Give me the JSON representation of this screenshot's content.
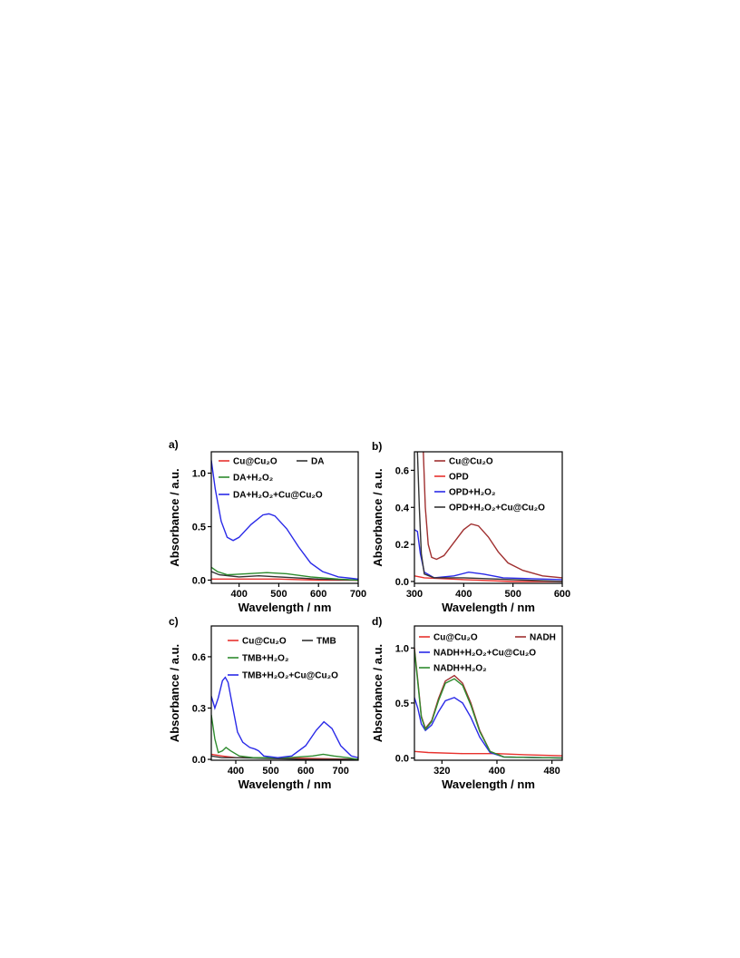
{
  "chart_data": [
    {
      "panel": "a)",
      "type": "line",
      "xlabel": "Wavelength / nm",
      "ylabel": "Absorbance / a.u.",
      "xlim": [
        330,
        700
      ],
      "ylim": [
        -0.03,
        1.2
      ],
      "xticks": [
        400,
        500,
        600,
        700
      ],
      "yticks": [
        0.0,
        0.5,
        1.0
      ],
      "ytick_labels": [
        "0.0",
        "0.5",
        "1.0"
      ],
      "legend": [
        {
          "label": "Cu@Cu₂O",
          "color": "#e8322e"
        },
        {
          "label": "DA",
          "color": "#333333"
        },
        {
          "label": "DA+H₂O₂",
          "color": "#2e8b2e"
        },
        {
          "label": "DA+H₂O₂+Cu@Cu₂O",
          "color": "#2a2ae8"
        }
      ],
      "series": [
        {
          "name": "Cu@Cu₂O",
          "color": "#e8322e",
          "points": [
            [
              330,
              0.01
            ],
            [
              400,
              0.01
            ],
            [
              500,
              0.01
            ],
            [
              600,
              0.0
            ],
            [
              700,
              0.0
            ]
          ]
        },
        {
          "name": "DA",
          "color": "#333333",
          "points": [
            [
              330,
              0.08
            ],
            [
              350,
              0.05
            ],
            [
              400,
              0.03
            ],
            [
              450,
              0.04
            ],
            [
              500,
              0.03
            ],
            [
              600,
              0.01
            ],
            [
              700,
              0.0
            ]
          ]
        },
        {
          "name": "DA+H₂O₂",
          "color": "#2e8b2e",
          "points": [
            [
              330,
              0.12
            ],
            [
              345,
              0.08
            ],
            [
              370,
              0.05
            ],
            [
              420,
              0.06
            ],
            [
              470,
              0.07
            ],
            [
              520,
              0.06
            ],
            [
              580,
              0.03
            ],
            [
              650,
              0.01
            ],
            [
              700,
              0.0
            ]
          ]
        },
        {
          "name": "DA+H₂O₂+Cu@Cu₂O",
          "color": "#2a2ae8",
          "points": [
            [
              330,
              1.12
            ],
            [
              340,
              0.85
            ],
            [
              355,
              0.55
            ],
            [
              370,
              0.4
            ],
            [
              385,
              0.37
            ],
            [
              400,
              0.4
            ],
            [
              430,
              0.52
            ],
            [
              460,
              0.61
            ],
            [
              475,
              0.62
            ],
            [
              490,
              0.6
            ],
            [
              520,
              0.48
            ],
            [
              550,
              0.31
            ],
            [
              580,
              0.16
            ],
            [
              610,
              0.08
            ],
            [
              650,
              0.03
            ],
            [
              700,
              0.01
            ]
          ]
        }
      ]
    },
    {
      "panel": "b)",
      "type": "line",
      "xlabel": "Wavelength / nm",
      "ylabel": "Absorbance / a.u.",
      "xlim": [
        300,
        600
      ],
      "ylim": [
        -0.01,
        0.7
      ],
      "xticks": [
        300,
        400,
        500,
        600
      ],
      "yticks": [
        0.0,
        0.2,
        0.4,
        0.6
      ],
      "ytick_labels": [
        "0.0",
        "0.2",
        "0.4",
        "0.6"
      ],
      "legend": [
        {
          "label": "Cu@Cu₂O",
          "color": "#a03030"
        },
        {
          "label": "OPD",
          "color": "#e8322e"
        },
        {
          "label": "OPD+H₂O₂",
          "color": "#2a2ae8"
        },
        {
          "label": "OPD+H₂O₂+Cu@Cu₂O",
          "color": "#333333"
        }
      ],
      "series": [
        {
          "name": "Cu@Cu₂O",
          "color": "#a03030",
          "points": [
            [
              318,
              0.7
            ],
            [
              322,
              0.4
            ],
            [
              328,
              0.2
            ],
            [
              335,
              0.13
            ],
            [
              345,
              0.12
            ],
            [
              360,
              0.14
            ],
            [
              380,
              0.21
            ],
            [
              400,
              0.28
            ],
            [
              415,
              0.31
            ],
            [
              430,
              0.3
            ],
            [
              450,
              0.24
            ],
            [
              470,
              0.16
            ],
            [
              490,
              0.1
            ],
            [
              520,
              0.06
            ],
            [
              560,
              0.03
            ],
            [
              600,
              0.02
            ]
          ]
        },
        {
          "name": "OPD",
          "color": "#e8322e",
          "points": [
            [
              300,
              0.03
            ],
            [
              320,
              0.02
            ],
            [
              400,
              0.01
            ],
            [
              500,
              0.0
            ],
            [
              600,
              0.0
            ]
          ]
        },
        {
          "name": "OPD+H₂O₂",
          "color": "#2a2ae8",
          "points": [
            [
              300,
              0.28
            ],
            [
              306,
              0.27
            ],
            [
              312,
              0.15
            ],
            [
              320,
              0.05
            ],
            [
              340,
              0.02
            ],
            [
              380,
              0.03
            ],
            [
              410,
              0.05
            ],
            [
              440,
              0.04
            ],
            [
              480,
              0.02
            ],
            [
              600,
              0.01
            ]
          ]
        },
        {
          "name": "OPD+H₂O₂+Cu@Cu₂O",
          "color": "#333333",
          "points": [
            [
              306,
              0.7
            ],
            [
              310,
              0.4
            ],
            [
              314,
              0.15
            ],
            [
              320,
              0.04
            ],
            [
              340,
              0.02
            ],
            [
              400,
              0.02
            ],
            [
              500,
              0.01
            ],
            [
              600,
              0.0
            ]
          ]
        }
      ]
    },
    {
      "panel": "c)",
      "type": "line",
      "xlabel": "Wavelength / nm",
      "ylabel": "Absorbance / a.u.",
      "xlim": [
        330,
        750
      ],
      "ylim": [
        -0.005,
        0.78
      ],
      "xticks": [
        400,
        500,
        600,
        700
      ],
      "yticks": [
        0.0,
        0.3,
        0.6
      ],
      "ytick_labels": [
        "0.0",
        "0.3",
        "0.6"
      ],
      "legend": [
        {
          "label": "Cu@Cu₂O",
          "color": "#e8322e"
        },
        {
          "label": "TMB",
          "color": "#333333"
        },
        {
          "label": "TMB+H₂O₂",
          "color": "#2e8b2e"
        },
        {
          "label": "TMB+H₂O₂+Cu@Cu₂O",
          "color": "#2a2ae8"
        }
      ],
      "series": [
        {
          "name": "Cu@Cu₂O",
          "color": "#e8322e",
          "points": [
            [
              330,
              0.03
            ],
            [
              360,
              0.02
            ],
            [
              400,
              0.01
            ],
            [
              500,
              0.01
            ],
            [
              750,
              0.0
            ]
          ]
        },
        {
          "name": "TMB",
          "color": "#333333",
          "points": [
            [
              330,
              0.02
            ],
            [
              360,
              0.01
            ],
            [
              400,
              0.01
            ],
            [
              600,
              0.0
            ],
            [
              750,
              0.0
            ]
          ]
        },
        {
          "name": "TMB+H₂O₂",
          "color": "#2e8b2e",
          "points": [
            [
              330,
              0.26
            ],
            [
              340,
              0.12
            ],
            [
              350,
              0.04
            ],
            [
              362,
              0.05
            ],
            [
              372,
              0.07
            ],
            [
              385,
              0.05
            ],
            [
              410,
              0.02
            ],
            [
              450,
              0.01
            ],
            [
              550,
              0.01
            ],
            [
              620,
              0.02
            ],
            [
              650,
              0.03
            ],
            [
              680,
              0.02
            ],
            [
              720,
              0.01
            ],
            [
              750,
              0.0
            ]
          ]
        },
        {
          "name": "TMB+H₂O₂+Cu@Cu₂O",
          "color": "#2a2ae8",
          "points": [
            [
              330,
              0.37
            ],
            [
              340,
              0.3
            ],
            [
              350,
              0.36
            ],
            [
              362,
              0.46
            ],
            [
              370,
              0.48
            ],
            [
              378,
              0.45
            ],
            [
              390,
              0.32
            ],
            [
              405,
              0.16
            ],
            [
              420,
              0.1
            ],
            [
              440,
              0.07
            ],
            [
              455,
              0.06
            ],
            [
              465,
              0.05
            ],
            [
              480,
              0.02
            ],
            [
              520,
              0.01
            ],
            [
              560,
              0.02
            ],
            [
              600,
              0.08
            ],
            [
              630,
              0.17
            ],
            [
              652,
              0.22
            ],
            [
              675,
              0.18
            ],
            [
              700,
              0.08
            ],
            [
              730,
              0.02
            ],
            [
              750,
              0.01
            ]
          ]
        }
      ]
    },
    {
      "panel": "d)",
      "type": "line",
      "xlabel": "Wavelength / nm",
      "ylabel": "Absorbance / a.u.",
      "xlim": [
        280,
        495
      ],
      "ylim": [
        -0.02,
        1.2
      ],
      "xticks": [
        320,
        400,
        480
      ],
      "yticks": [
        0.0,
        0.5,
        1.0
      ],
      "ytick_labels": [
        "0.0",
        "0.5",
        "1.0"
      ],
      "legend": [
        {
          "label": "Cu@Cu₂O",
          "color": "#e8322e"
        },
        {
          "label": "NADH",
          "color": "#a03030"
        },
        {
          "label": "NADH+H₂O₂+Cu@Cu₂O",
          "color": "#2a2ae8"
        },
        {
          "label": "NADH+H₂O₂",
          "color": "#2e8b2e"
        }
      ],
      "series": [
        {
          "name": "Cu@Cu₂O",
          "color": "#e8322e",
          "points": [
            [
              280,
              0.06
            ],
            [
              300,
              0.05
            ],
            [
              350,
              0.04
            ],
            [
              400,
              0.04
            ],
            [
              440,
              0.03
            ],
            [
              495,
              0.02
            ]
          ]
        },
        {
          "name": "NADH",
          "color": "#a03030",
          "points": [
            [
              280,
              1.0
            ],
            [
              285,
              0.7
            ],
            [
              290,
              0.38
            ],
            [
              296,
              0.27
            ],
            [
              305,
              0.34
            ],
            [
              315,
              0.54
            ],
            [
              325,
              0.7
            ],
            [
              338,
              0.75
            ],
            [
              350,
              0.68
            ],
            [
              362,
              0.5
            ],
            [
              375,
              0.25
            ],
            [
              390,
              0.06
            ],
            [
              410,
              0.01
            ],
            [
              495,
              0.0
            ]
          ]
        },
        {
          "name": "NADH+H₂O₂+Cu@Cu₂O",
          "color": "#2a2ae8",
          "points": [
            [
              280,
              0.55
            ],
            [
              285,
              0.45
            ],
            [
              290,
              0.31
            ],
            [
              296,
              0.25
            ],
            [
              305,
              0.3
            ],
            [
              315,
              0.42
            ],
            [
              325,
              0.52
            ],
            [
              338,
              0.55
            ],
            [
              350,
              0.5
            ],
            [
              362,
              0.37
            ],
            [
              375,
              0.19
            ],
            [
              390,
              0.05
            ],
            [
              410,
              0.01
            ],
            [
              495,
              0.0
            ]
          ]
        },
        {
          "name": "NADH+H₂O₂",
          "color": "#2e8b2e",
          "points": [
            [
              280,
              0.98
            ],
            [
              285,
              0.68
            ],
            [
              290,
              0.37
            ],
            [
              296,
              0.26
            ],
            [
              305,
              0.33
            ],
            [
              315,
              0.52
            ],
            [
              325,
              0.68
            ],
            [
              338,
              0.72
            ],
            [
              350,
              0.66
            ],
            [
              362,
              0.48
            ],
            [
              375,
              0.24
            ],
            [
              390,
              0.06
            ],
            [
              410,
              0.01
            ],
            [
              495,
              0.0
            ]
          ]
        }
      ]
    }
  ]
}
